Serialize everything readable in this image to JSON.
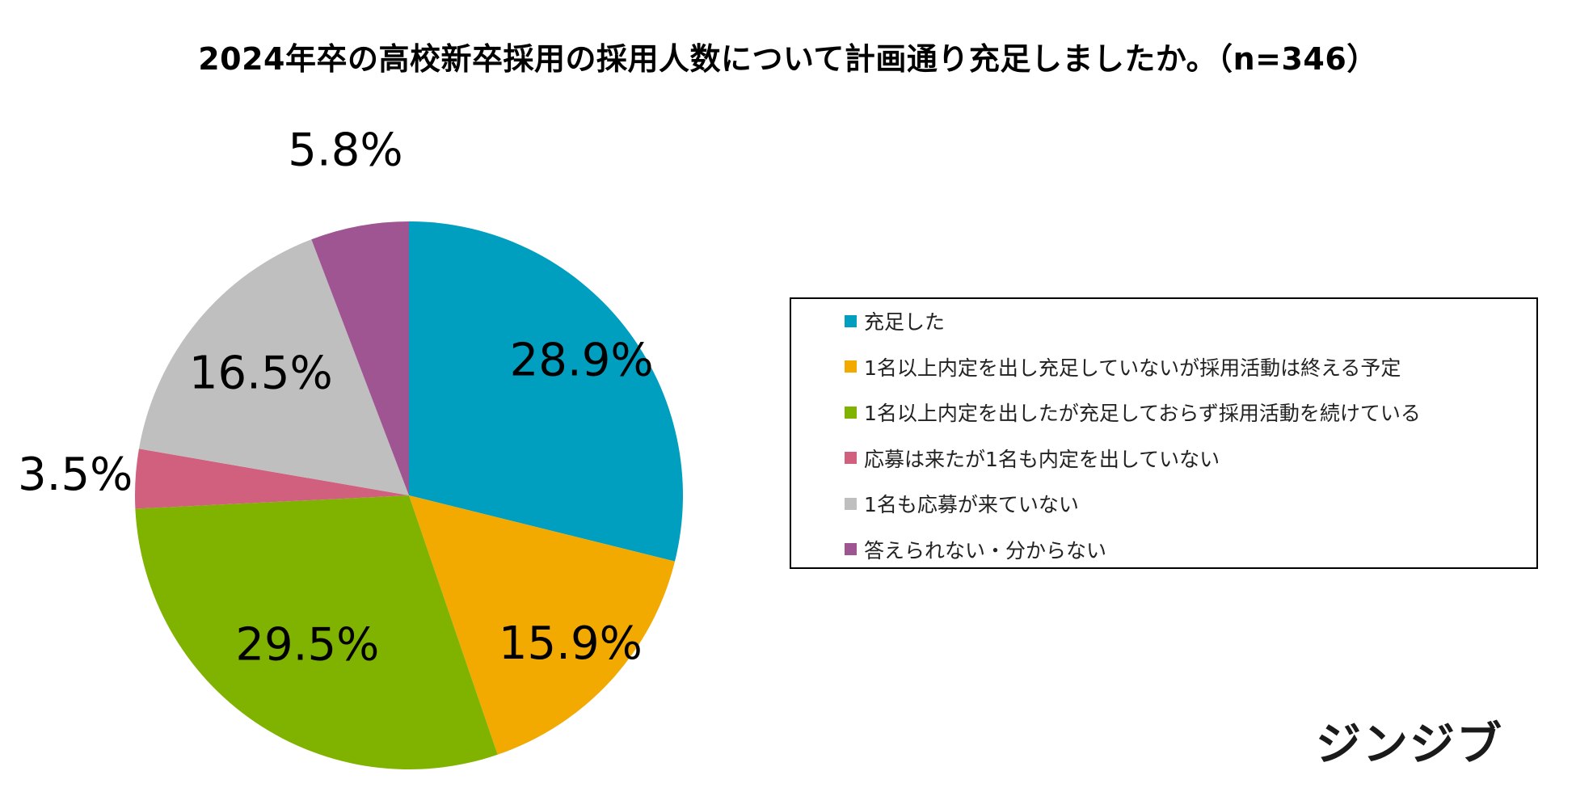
{
  "chart_data": {
    "type": "pie",
    "title": "2024年卒の高校新卒採用の採用人数について計画通り充足しましたか。（n=346）",
    "start_angle": "12 o'clock",
    "direction": "clockwise",
    "legend_position": "right",
    "value_unit": "%",
    "slices": [
      {
        "name": "充足した",
        "value": 28.9,
        "label": "28.9%",
        "color": "#009EBF"
      },
      {
        "name": "1名以上内定を出し充足していないが採用活動は終える予定",
        "value": 15.9,
        "label": "15.9%",
        "color": "#F2A900"
      },
      {
        "name": "1名以上内定を出したが充足しておらず採用活動を続けている",
        "value": 29.5,
        "label": "29.5%",
        "color": "#7FB300"
      },
      {
        "name": "応募は来たが1名も内定を出していない",
        "value": 3.5,
        "label": "3.5%",
        "color": "#D0607E"
      },
      {
        "name": "1名も応募が来ていない",
        "value": 16.5,
        "label": "16.5%",
        "color": "#BFBFBF"
      },
      {
        "name": "答えられない・分からない",
        "value": 5.8,
        "label": "5.8%",
        "color": "#A05593"
      }
    ]
  },
  "brand": {
    "logo_text": "ジンジブ"
  }
}
